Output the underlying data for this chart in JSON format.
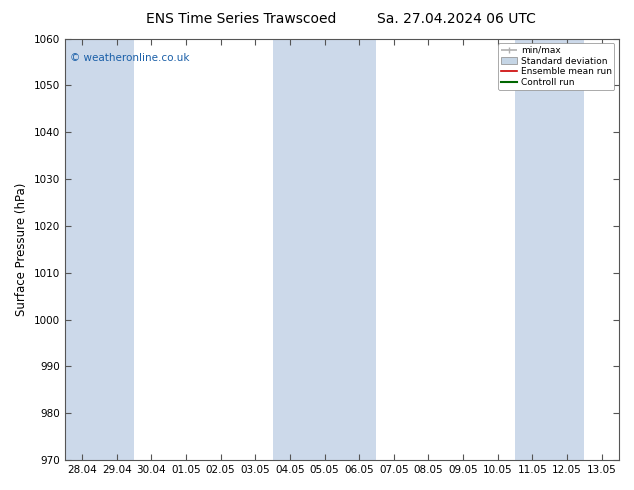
{
  "title_left": "ENS Time Series Trawscoed",
  "title_right": "Sa. 27.04.2024 06 UTC",
  "ylabel": "Surface Pressure (hPa)",
  "ylim": [
    970,
    1060
  ],
  "yticks": [
    970,
    980,
    990,
    1000,
    1010,
    1020,
    1030,
    1040,
    1050,
    1060
  ],
  "xtick_labels": [
    "28.04",
    "29.04",
    "30.04",
    "01.05",
    "02.05",
    "03.05",
    "04.05",
    "05.05",
    "06.05",
    "07.05",
    "08.05",
    "09.05",
    "10.05",
    "11.05",
    "12.05",
    "13.05"
  ],
  "background_color": "#ffffff",
  "plot_bg_color": "#ffffff",
  "shaded_columns_color": "#ccd9ea",
  "watermark": "© weatheronline.co.uk",
  "watermark_color": "#1a5fa8",
  "legend_items": [
    {
      "label": "min/max",
      "color": "#b0b0b0",
      "lw": 1.2
    },
    {
      "label": "Standard deviation",
      "color": "#c5d5e5",
      "lw": 8
    },
    {
      "label": "Ensemble mean run",
      "color": "#cc0000",
      "lw": 1.2
    },
    {
      "label": "Controll run",
      "color": "#006600",
      "lw": 1.5
    }
  ],
  "shaded_x_indices": [
    0,
    1,
    6,
    7,
    8,
    13,
    14
  ],
  "title_fontsize": 10,
  "tick_fontsize": 7.5,
  "ylabel_fontsize": 8.5
}
